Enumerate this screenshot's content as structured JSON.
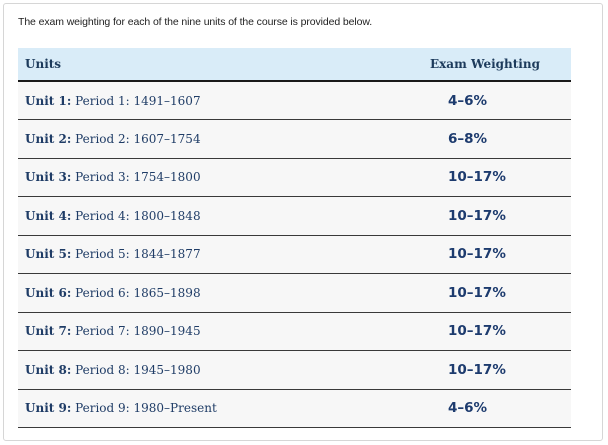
{
  "intro": "The exam weighting for each of the nine units of the course is provided below.",
  "table": {
    "headers": {
      "units": "Units",
      "weighting": "Exam Weighting"
    },
    "rows": [
      {
        "unit": "Unit 1:",
        "period": "Period 1: 1491–1607",
        "weight": "4–6%"
      },
      {
        "unit": "Unit 2:",
        "period": "Period 2: 1607–1754",
        "weight": "6–8%"
      },
      {
        "unit": "Unit 3:",
        "period": "Period 3: 1754–1800",
        "weight": "10–17%"
      },
      {
        "unit": "Unit 4:",
        "period": "Period 4: 1800–1848",
        "weight": "10–17%"
      },
      {
        "unit": "Unit 5:",
        "period": "Period 5: 1844–1877",
        "weight": "10–17%"
      },
      {
        "unit": "Unit 6:",
        "period": "Period 6: 1865–1898",
        "weight": "10–17%"
      },
      {
        "unit": "Unit 7:",
        "period": "Period 7: 1890–1945",
        "weight": "10–17%"
      },
      {
        "unit": "Unit 8:",
        "period": "Period 8: 1945–1980",
        "weight": "10–17%"
      },
      {
        "unit": "Unit 9:",
        "period": "Period 9: 1980–Present",
        "weight": "4–6%"
      }
    ]
  }
}
